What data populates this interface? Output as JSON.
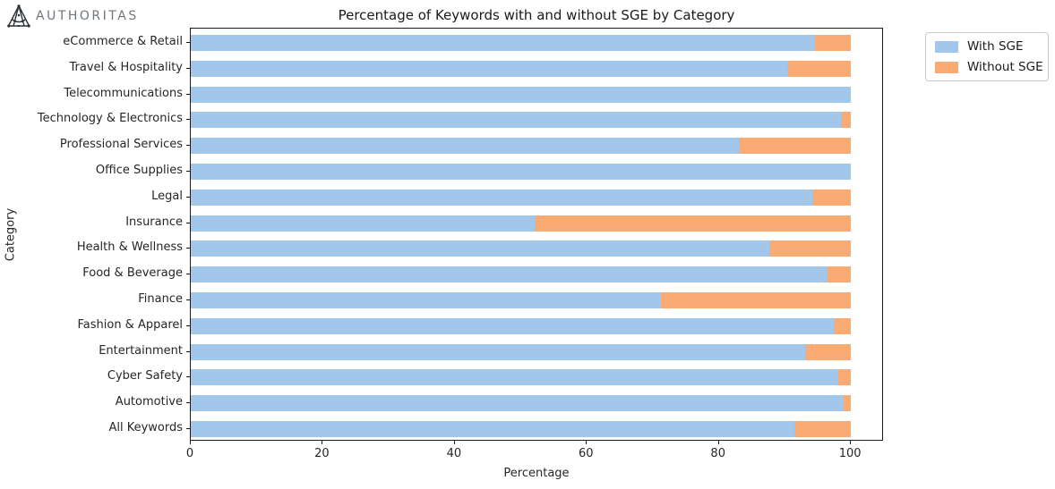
{
  "brand": {
    "name": "AUTHORITAS"
  },
  "chart_data": {
    "type": "bar",
    "orientation": "horizontal",
    "stacked": true,
    "title": "Percentage of Keywords with and without SGE by Category",
    "xlabel": "Percentage",
    "ylabel": "Category",
    "xlim": [
      0,
      105
    ],
    "x_ticks": [
      0,
      20,
      40,
      60,
      80,
      100
    ],
    "grid": false,
    "legend_position": "outside-top-right",
    "categories": [
      "eCommerce & Retail",
      "Travel & Hospitality",
      "Telecommunications",
      "Technology & Electronics",
      "Professional Services",
      "Office Supplies",
      "Legal",
      "Insurance",
      "Health & Wellness",
      "Food & Beverage",
      "Finance",
      "Fashion & Apparel",
      "Entertainment",
      "Cyber Safety",
      "Automotive",
      "All Keywords"
    ],
    "series": [
      {
        "name": "With SGE",
        "color": "#a3c6eb",
        "values": [
          94.5,
          90.4,
          100,
          98.5,
          83.0,
          100,
          94.1,
          52.1,
          87.7,
          96.4,
          71.2,
          97.4,
          93.1,
          98.1,
          98.9,
          91.5
        ]
      },
      {
        "name": "Without SGE",
        "color": "#f9ab73",
        "values": [
          5.5,
          9.6,
          0,
          1.5,
          17.0,
          0,
          5.9,
          47.9,
          12.3,
          3.6,
          28.8,
          2.6,
          6.9,
          1.9,
          1.1,
          8.5
        ]
      }
    ]
  }
}
